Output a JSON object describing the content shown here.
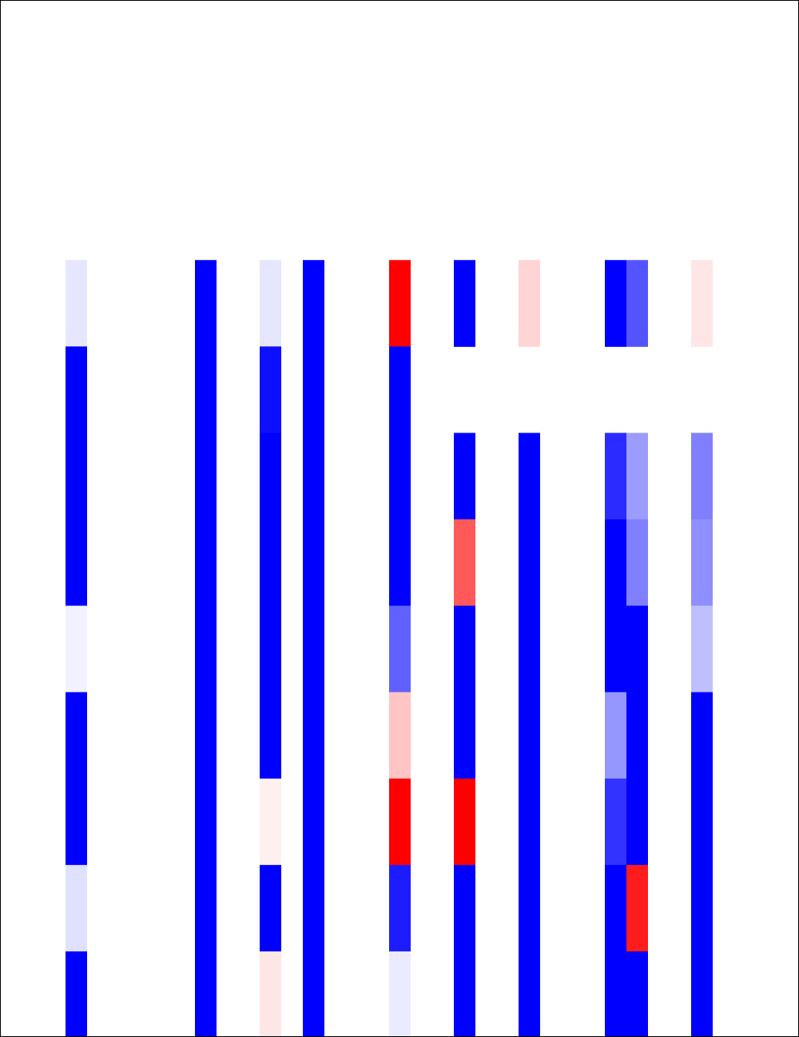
{
  "chart_data": {
    "type": "heatmap",
    "title": "",
    "xlabel": "",
    "ylabel": "",
    "colormap": {
      "low": "#0000ff",
      "mid": "#ffffff",
      "high": "#ff0000"
    },
    "value_range": [
      -1,
      1
    ],
    "total_columns": 37,
    "column_indices": [
      3,
      9,
      12,
      14,
      18,
      21,
      24,
      28,
      29,
      32
    ],
    "rows": [
      [
        null,
        null,
        null,
        null,
        null,
        null,
        null,
        null,
        null,
        null
      ],
      [
        null,
        null,
        null,
        null,
        null,
        null,
        null,
        null,
        null,
        null
      ],
      [
        null,
        null,
        null,
        null,
        null,
        null,
        null,
        null,
        null,
        null
      ],
      [
        -0.1,
        -1,
        -0.1,
        -1,
        1,
        -1,
        0.17,
        -1,
        -0.67,
        0.1
      ],
      [
        -1,
        -1,
        -0.94,
        -1,
        -1,
        null,
        null,
        null,
        null,
        null
      ],
      [
        -1,
        -1,
        -1,
        -1,
        -1,
        -1,
        -1,
        -0.83,
        -0.39,
        -0.5
      ],
      [
        -1,
        -1,
        -1,
        -1,
        -1,
        0.65,
        -1,
        -1,
        -0.5,
        -0.44
      ],
      [
        -0.05,
        -1,
        -1,
        -1,
        -0.62,
        -1,
        -1,
        -1,
        -1,
        -0.25
      ],
      [
        -1,
        -1,
        -1,
        -1,
        0.23,
        -1,
        -1,
        -0.41,
        -1,
        -1
      ],
      [
        -1,
        -1,
        0.06,
        -1,
        1,
        1,
        -1,
        -0.8,
        -1,
        -1
      ],
      [
        -0.12,
        -1,
        -1,
        -1,
        -0.89,
        -1,
        -1,
        -1,
        0.89,
        -1
      ],
      [
        -1,
        -1,
        0.1,
        -1,
        -0.08,
        -1,
        -1,
        -1,
        -1,
        -1
      ]
    ]
  }
}
